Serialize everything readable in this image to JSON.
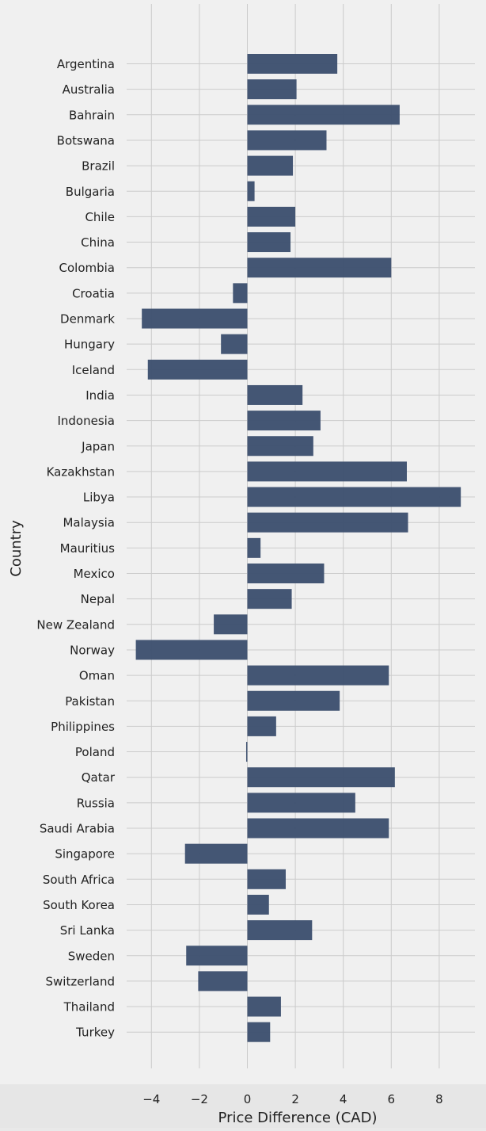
{
  "chart_data": {
    "type": "bar",
    "orientation": "horizontal",
    "xlabel": "Price Difference (CAD)",
    "ylabel": "Country",
    "xlim": [
      -5.0,
      9.0
    ],
    "xticks": [
      -4,
      -2,
      0,
      2,
      4,
      6,
      8
    ],
    "grid": true,
    "bar_color": "#3e5170",
    "background_color": "#f0f0f0",
    "categories": [
      "Argentina",
      "Australia",
      "Bahrain",
      "Botswana",
      "Brazil",
      "Bulgaria",
      "Chile",
      "China",
      "Colombia",
      "Croatia",
      "Denmark",
      "Hungary",
      "Iceland",
      "India",
      "Indonesia",
      "Japan",
      "Kazakhstan",
      "Libya",
      "Malaysia",
      "Mauritius",
      "Mexico",
      "Nepal",
      "New Zealand",
      "Norway",
      "Oman",
      "Pakistan",
      "Philippines",
      "Poland",
      "Qatar",
      "Russia",
      "Saudi Arabia",
      "Singapore",
      "South Africa",
      "South Korea",
      "Sri Lanka",
      "Sweden",
      "Switzerland",
      "Thailand",
      "Turkey"
    ],
    "values": [
      3.75,
      2.05,
      6.35,
      3.3,
      1.9,
      0.3,
      2.0,
      1.8,
      6.0,
      -0.6,
      -4.4,
      -1.1,
      -4.15,
      2.3,
      3.05,
      2.75,
      6.65,
      8.9,
      6.7,
      0.55,
      3.2,
      1.85,
      -1.4,
      -4.65,
      5.9,
      3.85,
      1.2,
      -0.05,
      6.15,
      4.5,
      5.9,
      -2.6,
      1.6,
      0.9,
      2.7,
      -2.55,
      -2.05,
      1.4,
      0.95
    ]
  }
}
